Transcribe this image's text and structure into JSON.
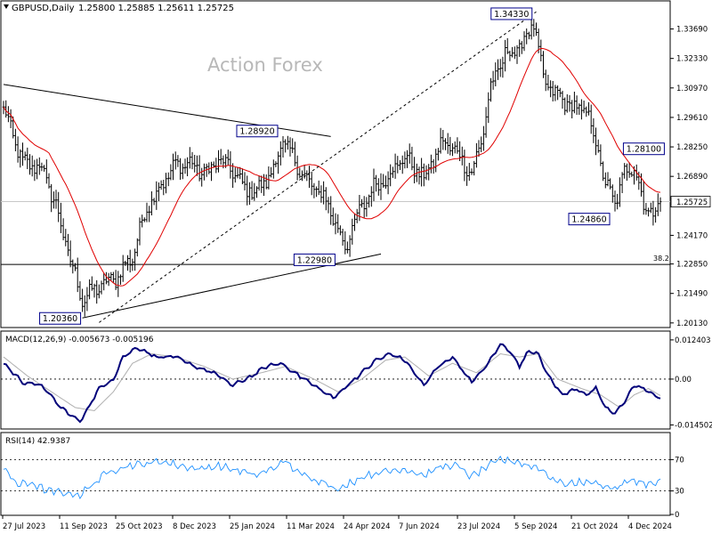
{
  "header": {
    "symbol": "GBPUSD,Daily",
    "ohlc": "1.25800 1.25885 1.25611 1.25725"
  },
  "watermark": "Action Forex",
  "colors": {
    "price": "#000000",
    "ma": "#e00000",
    "macd": "#00007a",
    "signal": "#b0b0b0",
    "rsi": "#1e90ff",
    "label_box_border": "#00008b",
    "grid_dash": "#000000"
  },
  "chart_data": [
    {
      "type": "line",
      "name": "price",
      "title": "GBPUSD,Daily",
      "x_ticks": [
        "27 Jul 2023",
        "11 Sep 2023",
        "25 Oct 2023",
        "8 Dec 2023",
        "25 Jan 2024",
        "11 Mar 2024",
        "24 Apr 2024",
        "7 Jun 2024",
        "23 Jul 2024",
        "5 Sep 2024",
        "21 Oct 2024",
        "4 Dec 2024"
      ],
      "y_ticks": [
        "1.33690",
        "1.32330",
        "1.30970",
        "1.29610",
        "1.28250",
        "1.26890",
        "1.24170",
        "1.22850",
        "1.21490",
        "1.20130"
      ],
      "ylim": [
        1.2,
        1.3478
      ],
      "current_price": "1.25725",
      "fib_level": {
        "label": "38.2",
        "value": 1.2283
      },
      "swing_labels": [
        {
          "text": "1.34330",
          "idx": 222,
          "value": 1.3433
        },
        {
          "text": "1.28920",
          "idx": 117,
          "value": 1.2892
        },
        {
          "text": "1.28100",
          "idx": 261,
          "value": 1.281
        },
        {
          "text": "1.24860",
          "idx": 256,
          "value": 1.2486
        },
        {
          "text": "1.22980",
          "idx": 141,
          "value": 1.2298
        },
        {
          "text": "1.20360",
          "idx": 33,
          "value": 1.2036
        }
      ],
      "trendlines": [
        {
          "from": [
            0,
            1.3113
          ],
          "to": [
            137,
            1.2873
          ],
          "style": "solid"
        },
        {
          "from": [
            33,
            1.2036
          ],
          "to": [
            158,
            1.2331
          ],
          "style": "solid"
        },
        {
          "from": [
            40,
            1.2015
          ],
          "to": [
            223,
            1.3448
          ],
          "style": "dashed"
        }
      ],
      "anchors": [
        [
          0,
          1.3
        ],
        [
          8,
          1.275
        ],
        [
          16,
          1.273
        ],
        [
          22,
          1.255
        ],
        [
          28,
          1.23
        ],
        [
          33,
          1.212
        ],
        [
          40,
          1.218
        ],
        [
          47,
          1.222
        ],
        [
          54,
          1.232
        ],
        [
          60,
          1.255
        ],
        [
          66,
          1.265
        ],
        [
          72,
          1.274
        ],
        [
          78,
          1.275
        ],
        [
          84,
          1.27
        ],
        [
          90,
          1.276
        ],
        [
          96,
          1.272
        ],
        [
          100,
          1.264
        ],
        [
          106,
          1.262
        ],
        [
          112,
          1.27
        ],
        [
          117,
          1.285
        ],
        [
          122,
          1.276
        ],
        [
          128,
          1.265
        ],
        [
          134,
          1.26
        ],
        [
          140,
          1.245
        ],
        [
          143,
          1.236
        ],
        [
          148,
          1.25
        ],
        [
          154,
          1.263
        ],
        [
          160,
          1.268
        ],
        [
          168,
          1.278
        ],
        [
          176,
          1.268
        ],
        [
          184,
          1.285
        ],
        [
          190,
          1.28
        ],
        [
          196,
          1.27
        ],
        [
          200,
          1.285
        ],
        [
          204,
          1.31
        ],
        [
          210,
          1.325
        ],
        [
          216,
          1.328
        ],
        [
          222,
          1.34
        ],
        [
          226,
          1.313
        ],
        [
          232,
          1.306
        ],
        [
          238,
          1.301
        ],
        [
          244,
          1.299
        ],
        [
          248,
          1.285
        ],
        [
          252,
          1.265
        ],
        [
          256,
          1.257
        ],
        [
          260,
          1.27
        ],
        [
          264,
          1.275
        ],
        [
          268,
          1.255
        ],
        [
          272,
          1.253
        ],
        [
          275,
          1.2573
        ]
      ]
    },
    {
      "type": "line",
      "name": "MACD",
      "title": "MACD(12,26,9) -0.005673 -0.005196",
      "y_ticks": [
        "0.012403",
        "0.00",
        "-0.014502"
      ],
      "ylim": [
        -0.0155,
        0.0135
      ],
      "anchors": [
        [
          0,
          0.005
        ],
        [
          8,
          -0.001
        ],
        [
          16,
          -0.002
        ],
        [
          24,
          -0.009
        ],
        [
          32,
          -0.0135
        ],
        [
          40,
          -0.003
        ],
        [
          46,
          0.0
        ],
        [
          50,
          0.007
        ],
        [
          56,
          0.01
        ],
        [
          64,
          0.007
        ],
        [
          72,
          0.007
        ],
        [
          80,
          0.004
        ],
        [
          88,
          0.002
        ],
        [
          96,
          -0.002
        ],
        [
          104,
          0.001
        ],
        [
          110,
          0.004
        ],
        [
          116,
          0.005
        ],
        [
          124,
          0.001
        ],
        [
          132,
          -0.003
        ],
        [
          138,
          -0.006
        ],
        [
          144,
          -0.002
        ],
        [
          150,
          0.002
        ],
        [
          156,
          0.006
        ],
        [
          162,
          0.008
        ],
        [
          168,
          0.006
        ],
        [
          176,
          -0.002
        ],
        [
          182,
          0.004
        ],
        [
          188,
          0.007
        ],
        [
          196,
          -0.001
        ],
        [
          202,
          0.004
        ],
        [
          208,
          0.011
        ],
        [
          212,
          0.009
        ],
        [
          216,
          0.004
        ],
        [
          220,
          0.009
        ],
        [
          224,
          0.008
        ],
        [
          228,
          0.001
        ],
        [
          234,
          -0.005
        ],
        [
          240,
          -0.003
        ],
        [
          244,
          -0.005
        ],
        [
          248,
          -0.003
        ],
        [
          252,
          -0.009
        ],
        [
          256,
          -0.011
        ],
        [
          260,
          -0.007
        ],
        [
          264,
          -0.002
        ],
        [
          268,
          -0.003
        ],
        [
          272,
          -0.005
        ],
        [
          275,
          -0.0057
        ]
      ],
      "signal_anchors": [
        [
          0,
          0.007
        ],
        [
          10,
          0.001
        ],
        [
          20,
          -0.004
        ],
        [
          30,
          -0.009
        ],
        [
          38,
          -0.01
        ],
        [
          46,
          -0.004
        ],
        [
          54,
          0.005
        ],
        [
          62,
          0.008
        ],
        [
          72,
          0.007
        ],
        [
          84,
          0.004
        ],
        [
          96,
          0.0
        ],
        [
          108,
          0.002
        ],
        [
          118,
          0.004
        ],
        [
          130,
          0.0
        ],
        [
          140,
          -0.004
        ],
        [
          150,
          0.0
        ],
        [
          160,
          0.006
        ],
        [
          168,
          0.007
        ],
        [
          178,
          0.001
        ],
        [
          188,
          0.005
        ],
        [
          198,
          0.002
        ],
        [
          208,
          0.008
        ],
        [
          216,
          0.007
        ],
        [
          224,
          0.008
        ],
        [
          232,
          0.0
        ],
        [
          242,
          -0.003
        ],
        [
          250,
          -0.005
        ],
        [
          258,
          -0.009
        ],
        [
          264,
          -0.005
        ],
        [
          270,
          -0.003
        ],
        [
          275,
          -0.0052
        ]
      ]
    },
    {
      "type": "line",
      "name": "RSI",
      "title": "RSI(14) 42.9387",
      "y_ticks": [
        "70",
        "30",
        "0"
      ],
      "ylim": [
        0,
        100
      ],
      "levels": [
        70,
        30
      ],
      "anchors": [
        [
          0,
          58
        ],
        [
          6,
          38
        ],
        [
          12,
          40
        ],
        [
          18,
          30
        ],
        [
          24,
          28
        ],
        [
          32,
          25
        ],
        [
          38,
          40
        ],
        [
          44,
          55
        ],
        [
          52,
          62
        ],
        [
          58,
          64
        ],
        [
          66,
          68
        ],
        [
          74,
          62
        ],
        [
          82,
          58
        ],
        [
          90,
          62
        ],
        [
          98,
          56
        ],
        [
          106,
          50
        ],
        [
          112,
          58
        ],
        [
          118,
          68
        ],
        [
          124,
          52
        ],
        [
          130,
          45
        ],
        [
          136,
          40
        ],
        [
          140,
          30
        ],
        [
          146,
          42
        ],
        [
          152,
          50
        ],
        [
          160,
          55
        ],
        [
          168,
          58
        ],
        [
          176,
          50
        ],
        [
          184,
          62
        ],
        [
          190,
          62
        ],
        [
          196,
          48
        ],
        [
          202,
          60
        ],
        [
          208,
          70
        ],
        [
          214,
          68
        ],
        [
          220,
          62
        ],
        [
          224,
          60
        ],
        [
          230,
          45
        ],
        [
          236,
          38
        ],
        [
          242,
          42
        ],
        [
          248,
          40
        ],
        [
          252,
          36
        ],
        [
          256,
          33
        ],
        [
          260,
          40
        ],
        [
          264,
          44
        ],
        [
          268,
          40
        ],
        [
          272,
          38
        ],
        [
          275,
          43
        ]
      ]
    }
  ]
}
